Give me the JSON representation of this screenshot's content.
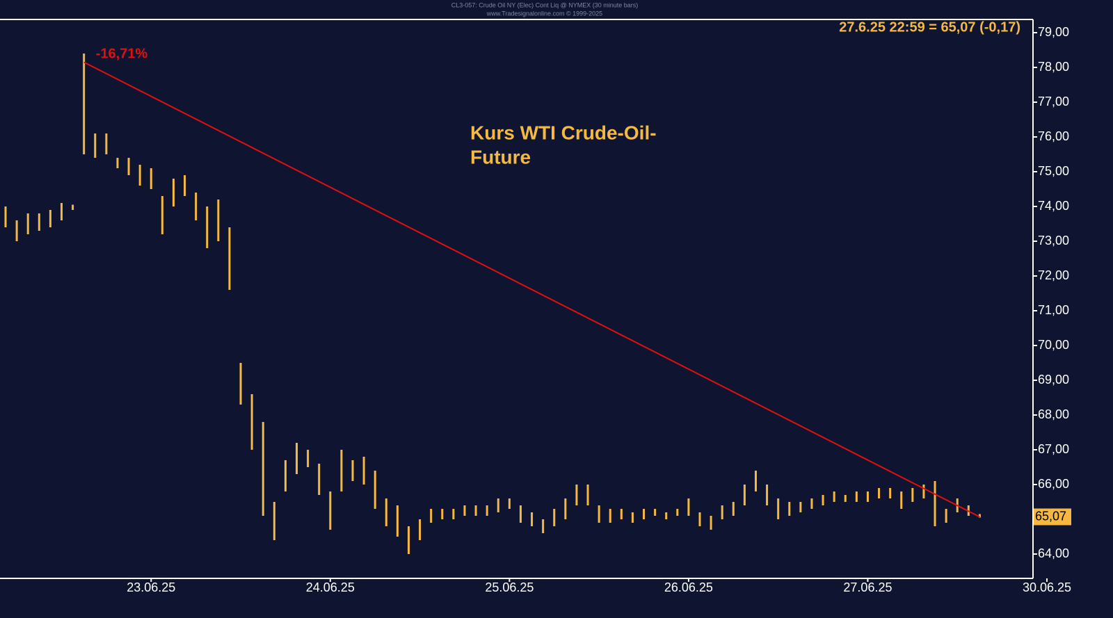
{
  "chart_data": {
    "type": "range-bars",
    "header": "CL3-057: Crude Oil NY (Elec) Cont Liq @ NYMEX (30 minute bars)",
    "subheader": "www.Tradesignalonline.com © 1999-2025",
    "title_lines": [
      "Kurs WTI Crude-Oil-",
      "Future"
    ],
    "last_label": "27.6.25 22:59 = 65,07 (-0,17)",
    "last_value": 65.07,
    "last_value_label": "65,07",
    "color": "#f5b942",
    "categories": [
      null,
      null,
      null,
      null,
      null,
      null,
      null,
      null,
      null,
      null,
      null,
      null,
      null,
      "23.06.25",
      null,
      null,
      null,
      null,
      null,
      null,
      null,
      null,
      null,
      null,
      null,
      null,
      null,
      null,
      null,
      "24.06.25",
      null,
      null,
      null,
      null,
      null,
      null,
      null,
      null,
      null,
      null,
      null,
      null,
      null,
      null,
      null,
      "25.06.25",
      null,
      null,
      null,
      null,
      null,
      null,
      null,
      null,
      null,
      null,
      null,
      null,
      null,
      null,
      null,
      "26.06.25",
      null,
      null,
      null,
      null,
      null,
      null,
      null,
      null,
      null,
      null,
      null,
      null,
      null,
      null,
      null,
      "27.06.25",
      null,
      null,
      null,
      null,
      null,
      null,
      null,
      null,
      null,
      null,
      null,
      null,
      null,
      null,
      null,
      "30.06.25"
    ],
    "highs": [
      74.0,
      73.6,
      73.8,
      73.8,
      73.9,
      74.1,
      74.05,
      78.4,
      76.1,
      76.1,
      75.4,
      75.4,
      75.2,
      75.1,
      74.3,
      74.8,
      74.9,
      74.4,
      74.0,
      74.2,
      73.4,
      69.5,
      68.6,
      67.8,
      65.5,
      66.7,
      67.2,
      67.0,
      66.6,
      65.8,
      67.0,
      66.7,
      66.8,
      66.4,
      65.6,
      65.4,
      64.8,
      65.0,
      65.3,
      65.3,
      65.3,
      65.4,
      65.4,
      65.4,
      65.6,
      65.6,
      65.4,
      65.2,
      65.0,
      65.3,
      65.6,
      66.0,
      66.0,
      65.4,
      65.3,
      65.3,
      65.2,
      65.3,
      65.3,
      65.2,
      65.3,
      65.6,
      65.2,
      65.1,
      65.4,
      65.5,
      66.0,
      66.4,
      66.0,
      65.6,
      65.5,
      65.5,
      65.6,
      65.7,
      65.8,
      65.7,
      65.8,
      65.8,
      65.9,
      65.9,
      65.8,
      65.9,
      66.0,
      66.1,
      65.3,
      65.6,
      65.4,
      65.15,
      null,
      null,
      null,
      null,
      null,
      null
    ],
    "lows": [
      73.4,
      73.0,
      73.2,
      73.3,
      73.4,
      73.6,
      73.9,
      75.5,
      75.4,
      75.5,
      75.1,
      74.9,
      74.6,
      74.5,
      73.2,
      74.0,
      74.3,
      73.6,
      72.8,
      73.0,
      71.6,
      68.3,
      67.0,
      65.1,
      64.4,
      65.8,
      66.3,
      66.5,
      65.7,
      64.7,
      65.8,
      66.1,
      66.0,
      65.3,
      64.8,
      64.5,
      64.0,
      64.4,
      64.9,
      65.0,
      65.0,
      65.1,
      65.1,
      65.1,
      65.2,
      65.3,
      64.9,
      64.8,
      64.6,
      64.8,
      65.0,
      65.4,
      65.4,
      64.9,
      64.9,
      65.0,
      64.9,
      65.0,
      65.1,
      65.0,
      65.1,
      65.1,
      64.8,
      64.7,
      65.0,
      65.1,
      65.4,
      65.8,
      65.4,
      65.0,
      65.1,
      65.2,
      65.3,
      65.4,
      65.5,
      65.5,
      65.5,
      65.5,
      65.6,
      65.6,
      65.3,
      65.5,
      65.6,
      64.8,
      64.9,
      65.2,
      65.1,
      65.05,
      null,
      null,
      null,
      null,
      null,
      null
    ],
    "trendline": {
      "from": [
        7,
        78.15
      ],
      "to": [
        87,
        65.07
      ],
      "label": "-16,71%",
      "color": "#e01010"
    },
    "ylim": [
      63.3,
      79.38
    ],
    "yticks": [
      {
        "value": 64,
        "label": "64,00"
      },
      {
        "value": 65,
        "label": "65,00"
      },
      {
        "value": 66,
        "label": "66,00"
      },
      {
        "value": 67,
        "label": "67,00"
      },
      {
        "value": 68,
        "label": "68,00"
      },
      {
        "value": 69,
        "label": "69,00"
      },
      {
        "value": 70,
        "label": "70,00"
      },
      {
        "value": 71,
        "label": "71,00"
      },
      {
        "value": 72,
        "label": "72,00"
      },
      {
        "value": 73,
        "label": "73,00"
      },
      {
        "value": 74,
        "label": "74,00"
      },
      {
        "value": 75,
        "label": "75,00"
      },
      {
        "value": 76,
        "label": "76,00"
      },
      {
        "value": 77,
        "label": "77,00"
      },
      {
        "value": 78,
        "label": "78,00"
      },
      {
        "value": 79,
        "label": "79,00"
      }
    ]
  }
}
